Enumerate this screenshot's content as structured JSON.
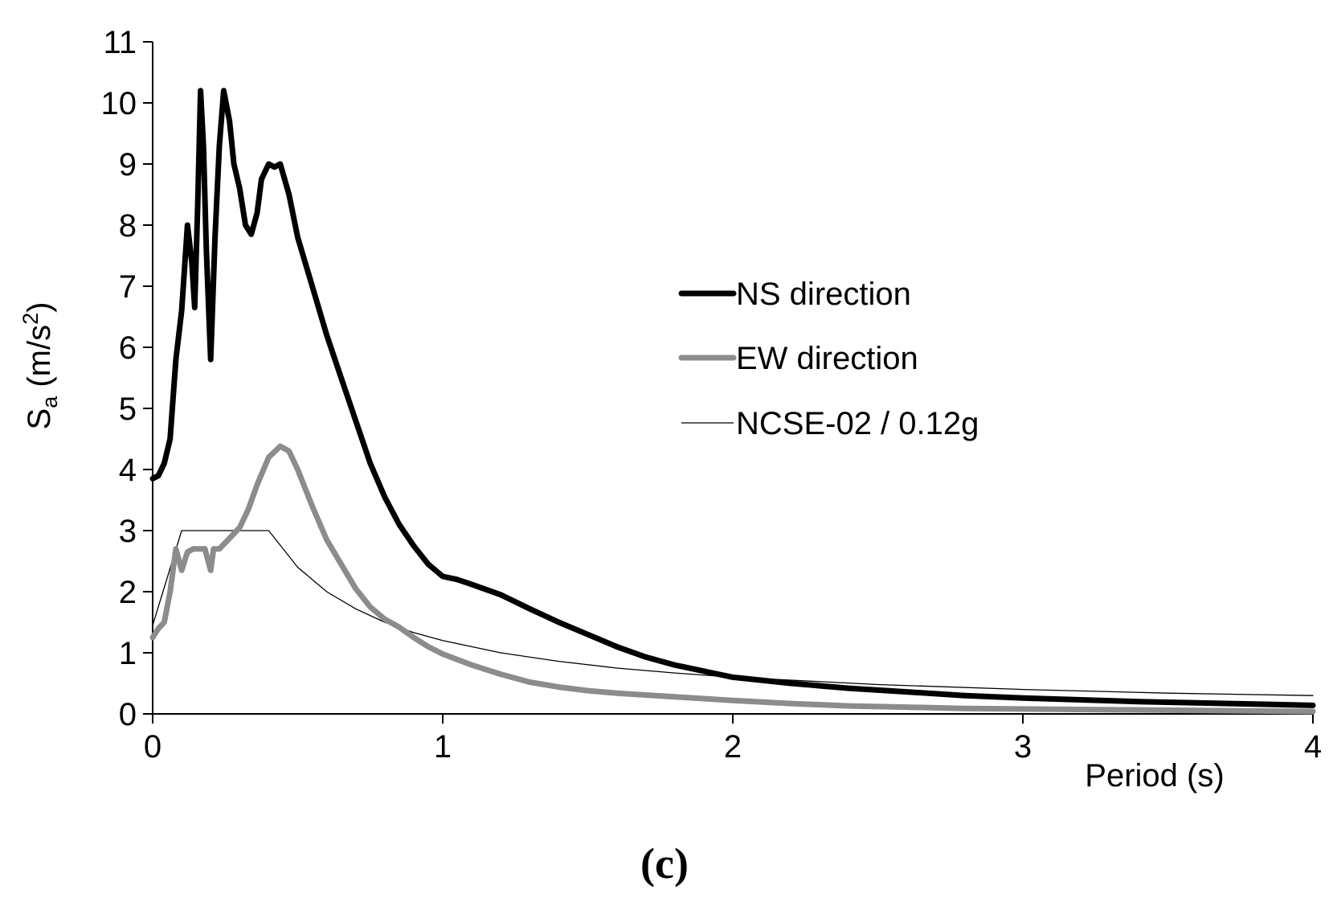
{
  "chart_data": {
    "type": "line",
    "title": "",
    "xlabel": "Period (s)",
    "ylabel": {
      "base": "S",
      "sub": "a",
      "pre_unit": " (m/s",
      "sup": "2",
      "post_unit": ")"
    },
    "xlim": [
      0,
      4
    ],
    "ylim": [
      0,
      11
    ],
    "x_ticks": [
      0,
      1,
      2,
      3,
      4
    ],
    "y_ticks": [
      0,
      1,
      2,
      3,
      4,
      5,
      6,
      7,
      8,
      9,
      10,
      11
    ],
    "grid": false,
    "legend_position": "center-right",
    "panel_label": "(c)",
    "series": [
      {
        "name": "NS direction",
        "color": "#000000",
        "style": "thick",
        "points": [
          [
            0.0,
            3.85
          ],
          [
            0.02,
            3.9
          ],
          [
            0.04,
            4.1
          ],
          [
            0.06,
            4.5
          ],
          [
            0.08,
            5.8
          ],
          [
            0.1,
            6.6
          ],
          [
            0.12,
            8.0
          ],
          [
            0.135,
            7.4
          ],
          [
            0.145,
            6.65
          ],
          [
            0.155,
            8.3
          ],
          [
            0.165,
            10.2
          ],
          [
            0.175,
            9.3
          ],
          [
            0.185,
            7.6
          ],
          [
            0.2,
            5.8
          ],
          [
            0.215,
            7.8
          ],
          [
            0.23,
            9.3
          ],
          [
            0.245,
            10.2
          ],
          [
            0.265,
            9.7
          ],
          [
            0.28,
            9.0
          ],
          [
            0.3,
            8.6
          ],
          [
            0.32,
            8.0
          ],
          [
            0.34,
            7.85
          ],
          [
            0.36,
            8.2
          ],
          [
            0.375,
            8.75
          ],
          [
            0.4,
            9.0
          ],
          [
            0.42,
            8.95
          ],
          [
            0.44,
            9.0
          ],
          [
            0.47,
            8.5
          ],
          [
            0.5,
            7.8
          ],
          [
            0.55,
            7.0
          ],
          [
            0.6,
            6.2
          ],
          [
            0.65,
            5.5
          ],
          [
            0.7,
            4.8
          ],
          [
            0.75,
            4.1
          ],
          [
            0.8,
            3.55
          ],
          [
            0.85,
            3.1
          ],
          [
            0.9,
            2.75
          ],
          [
            0.95,
            2.45
          ],
          [
            1.0,
            2.25
          ],
          [
            1.05,
            2.2
          ],
          [
            1.1,
            2.12
          ],
          [
            1.2,
            1.95
          ],
          [
            1.3,
            1.72
          ],
          [
            1.4,
            1.5
          ],
          [
            1.5,
            1.3
          ],
          [
            1.6,
            1.1
          ],
          [
            1.7,
            0.93
          ],
          [
            1.8,
            0.8
          ],
          [
            1.9,
            0.7
          ],
          [
            2.0,
            0.6
          ],
          [
            2.2,
            0.5
          ],
          [
            2.4,
            0.42
          ],
          [
            2.6,
            0.36
          ],
          [
            2.8,
            0.3
          ],
          [
            3.0,
            0.26
          ],
          [
            3.2,
            0.23
          ],
          [
            3.4,
            0.2
          ],
          [
            3.6,
            0.18
          ],
          [
            3.8,
            0.16
          ],
          [
            4.0,
            0.14
          ]
        ]
      },
      {
        "name": "EW direction",
        "color": "#8c8c8c",
        "style": "thick",
        "points": [
          [
            0.0,
            1.25
          ],
          [
            0.02,
            1.4
          ],
          [
            0.04,
            1.5
          ],
          [
            0.06,
            2.0
          ],
          [
            0.08,
            2.7
          ],
          [
            0.1,
            2.35
          ],
          [
            0.12,
            2.65
          ],
          [
            0.14,
            2.7
          ],
          [
            0.16,
            2.7
          ],
          [
            0.18,
            2.7
          ],
          [
            0.2,
            2.35
          ],
          [
            0.21,
            2.7
          ],
          [
            0.23,
            2.7
          ],
          [
            0.25,
            2.8
          ],
          [
            0.28,
            2.95
          ],
          [
            0.3,
            3.05
          ],
          [
            0.33,
            3.35
          ],
          [
            0.36,
            3.75
          ],
          [
            0.4,
            4.2
          ],
          [
            0.44,
            4.38
          ],
          [
            0.47,
            4.3
          ],
          [
            0.5,
            4.0
          ],
          [
            0.55,
            3.4
          ],
          [
            0.6,
            2.85
          ],
          [
            0.65,
            2.45
          ],
          [
            0.7,
            2.05
          ],
          [
            0.75,
            1.75
          ],
          [
            0.8,
            1.55
          ],
          [
            0.85,
            1.42
          ],
          [
            0.9,
            1.25
          ],
          [
            0.95,
            1.1
          ],
          [
            1.0,
            0.98
          ],
          [
            1.1,
            0.8
          ],
          [
            1.2,
            0.65
          ],
          [
            1.3,
            0.52
          ],
          [
            1.4,
            0.44
          ],
          [
            1.5,
            0.38
          ],
          [
            1.6,
            0.34
          ],
          [
            1.8,
            0.28
          ],
          [
            2.0,
            0.22
          ],
          [
            2.2,
            0.17
          ],
          [
            2.4,
            0.13
          ],
          [
            2.6,
            0.11
          ],
          [
            2.8,
            0.09
          ],
          [
            3.0,
            0.08
          ],
          [
            3.5,
            0.06
          ],
          [
            4.0,
            0.04
          ]
        ]
      },
      {
        "name": "NCSE-02 / 0.12g",
        "color": "#000000",
        "style": "thin",
        "points": [
          [
            0.0,
            1.45
          ],
          [
            0.1,
            3.0
          ],
          [
            0.4,
            3.0
          ],
          [
            0.5,
            2.4
          ],
          [
            0.6,
            2.0
          ],
          [
            0.7,
            1.72
          ],
          [
            0.8,
            1.5
          ],
          [
            0.9,
            1.33
          ],
          [
            1.0,
            1.2
          ],
          [
            1.2,
            1.0
          ],
          [
            1.4,
            0.86
          ],
          [
            1.6,
            0.75
          ],
          [
            1.8,
            0.67
          ],
          [
            2.0,
            0.6
          ],
          [
            2.5,
            0.48
          ],
          [
            3.0,
            0.4
          ],
          [
            3.5,
            0.34
          ],
          [
            4.0,
            0.3
          ]
        ]
      }
    ]
  }
}
